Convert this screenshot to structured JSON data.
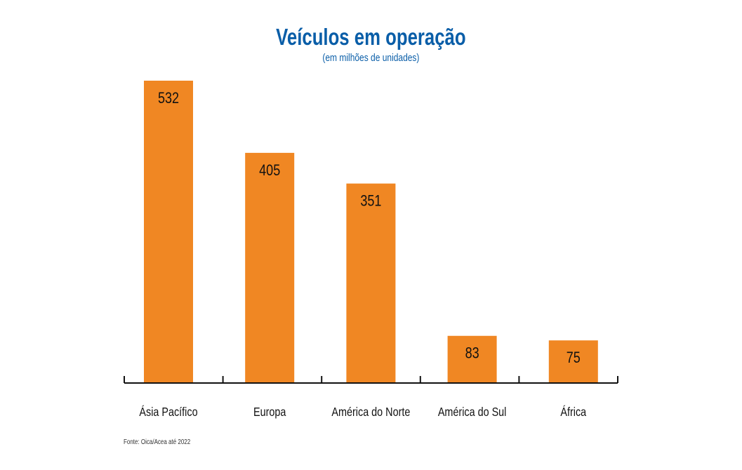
{
  "chart_data": {
    "type": "bar",
    "title": "Veículos em operação",
    "subtitle": "(em milhões de unidades)",
    "categories": [
      "Ásia Pacífico",
      "Europa",
      "América do Norte",
      "América do Sul",
      "África"
    ],
    "values": [
      532,
      405,
      351,
      83,
      75
    ],
    "xlabel": "",
    "ylabel": "",
    "ylim": [
      0,
      532
    ],
    "grid": false,
    "bar_color": "#f08723",
    "source": "Fonte: Oica/Acea até 2022"
  }
}
